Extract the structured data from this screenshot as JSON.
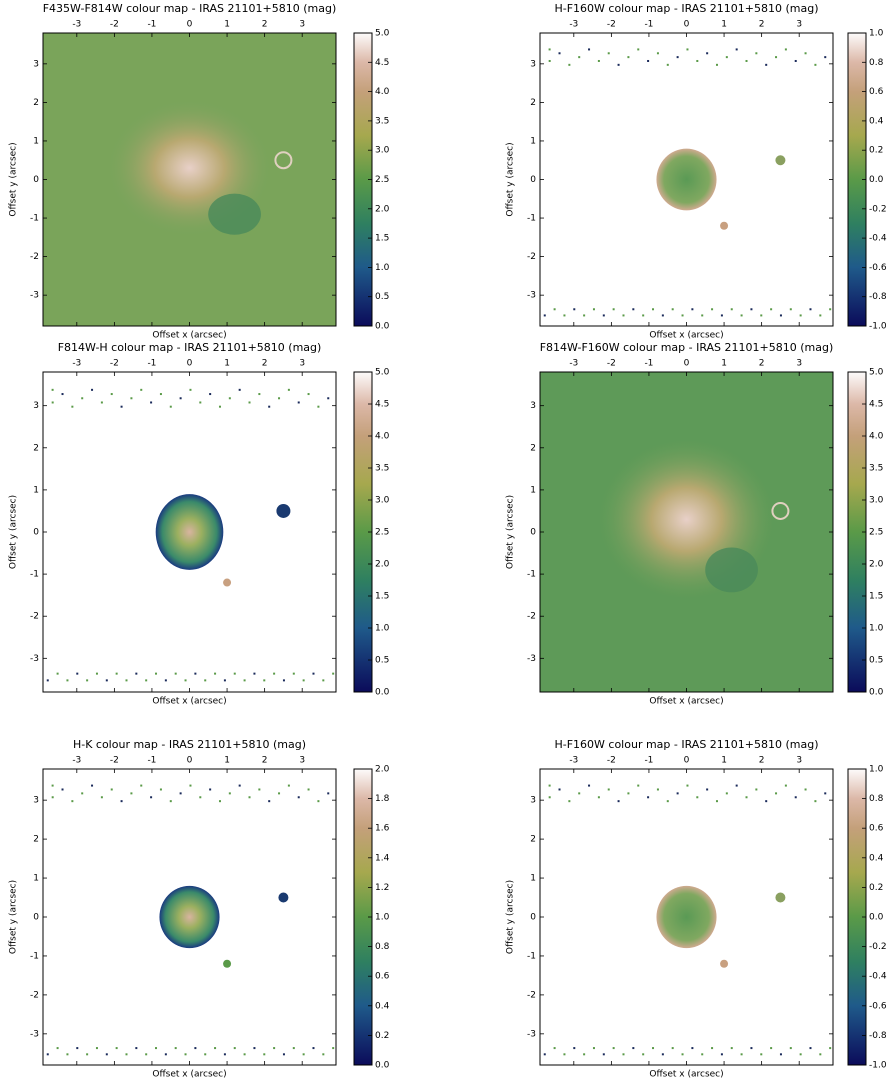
{
  "chart_data": [
    {
      "type": "image",
      "title": "F435W-F814W colour map - IRAS 21101+5810 (mag)",
      "xlabel": "Offset x (arcsec)",
      "ylabel": "Offset y (arcsec)",
      "xlim": [
        -3.9,
        3.9
      ],
      "ylim": [
        -3.8,
        3.8
      ],
      "xticks": [
        -3,
        -2,
        -1,
        0,
        1,
        2,
        3
      ],
      "yticks": [
        -3,
        -2,
        -1,
        0,
        1,
        2,
        3
      ],
      "clim": [
        0,
        5
      ],
      "cticks": [
        {
          "value": 0,
          "label": "0.0"
        },
        {
          "value": 0.5,
          "label": "0.5"
        },
        {
          "value": 1,
          "label": "1.0"
        },
        {
          "value": 1.5,
          "label": "1.5"
        },
        {
          "value": 2,
          "label": "2.0"
        },
        {
          "value": 2.5,
          "label": "2.5"
        },
        {
          "value": 3,
          "label": "3.0"
        },
        {
          "value": 3.5,
          "label": "3.5"
        },
        {
          "value": 4,
          "label": "4.0"
        },
        {
          "value": 4.5,
          "label": "4.5"
        },
        {
          "value": 5,
          "label": "5.0"
        }
      ]
    },
    {
      "type": "image",
      "title": "H-F160W colour map - IRAS 21101+5810 (mag)",
      "xlabel": "Offset x (arcsec)",
      "ylabel": "Offset y (arcsec)",
      "xlim": [
        -3.9,
        3.9
      ],
      "ylim": [
        -3.8,
        3.8
      ],
      "xticks": [
        -3,
        -2,
        -1,
        0,
        1,
        2,
        3
      ],
      "yticks": [
        -3,
        -2,
        -1,
        0,
        1,
        2,
        3
      ],
      "clim": [
        -1,
        1
      ],
      "cticks": [
        {
          "value": -1,
          "label": "-1.0"
        },
        {
          "value": -0.8,
          "label": "-0.8"
        },
        {
          "value": -0.6,
          "label": "-0.6"
        },
        {
          "value": -0.4,
          "label": "-0.4"
        },
        {
          "value": -0.2,
          "label": "-0.2"
        },
        {
          "value": 0,
          "label": "0.0"
        },
        {
          "value": 0.2,
          "label": "0.2"
        },
        {
          "value": 0.4,
          "label": "0.4"
        },
        {
          "value": 0.6,
          "label": "0.6"
        },
        {
          "value": 0.8,
          "label": "0.8"
        },
        {
          "value": 1,
          "label": "1.0"
        }
      ]
    },
    {
      "type": "image",
      "title": "F814W-H colour map - IRAS 21101+5810 (mag)",
      "xlabel": "Offset x (arcsec)",
      "ylabel": "Offset y (arcsec)",
      "xlim": [
        -3.9,
        3.9
      ],
      "ylim": [
        -3.8,
        3.8
      ],
      "xticks": [
        -3,
        -2,
        -1,
        0,
        1,
        2,
        3
      ],
      "yticks": [
        -3,
        -2,
        -1,
        0,
        1,
        2,
        3
      ],
      "clim": [
        0,
        5
      ],
      "cticks": [
        {
          "value": 0,
          "label": "0.0"
        },
        {
          "value": 0.5,
          "label": "0.5"
        },
        {
          "value": 1,
          "label": "1.0"
        },
        {
          "value": 1.5,
          "label": "1.5"
        },
        {
          "value": 2,
          "label": "2.0"
        },
        {
          "value": 2.5,
          "label": "2.5"
        },
        {
          "value": 3,
          "label": "3.0"
        },
        {
          "value": 3.5,
          "label": "3.5"
        },
        {
          "value": 4,
          "label": "4.0"
        },
        {
          "value": 4.5,
          "label": "4.5"
        },
        {
          "value": 5,
          "label": "5.0"
        }
      ]
    },
    {
      "type": "image",
      "title": "F814W-F160W colour map - IRAS 21101+5810 (mag)",
      "xlabel": "Offset x (arcsec)",
      "ylabel": "Offset y (arcsec)",
      "xlim": [
        -3.9,
        3.9
      ],
      "ylim": [
        -3.8,
        3.8
      ],
      "xticks": [
        -3,
        -2,
        -1,
        0,
        1,
        2,
        3
      ],
      "yticks": [
        -3,
        -2,
        -1,
        0,
        1,
        2,
        3
      ],
      "clim": [
        0,
        5
      ],
      "cticks": [
        {
          "value": 0,
          "label": "0.0"
        },
        {
          "value": 0.5,
          "label": "0.5"
        },
        {
          "value": 1,
          "label": "1.0"
        },
        {
          "value": 1.5,
          "label": "1.5"
        },
        {
          "value": 2,
          "label": "2.0"
        },
        {
          "value": 2.5,
          "label": "2.5"
        },
        {
          "value": 3,
          "label": "3.0"
        },
        {
          "value": 3.5,
          "label": "3.5"
        },
        {
          "value": 4,
          "label": "4.0"
        },
        {
          "value": 4.5,
          "label": "4.5"
        },
        {
          "value": 5,
          "label": "5.0"
        }
      ]
    },
    {
      "type": "image",
      "title": "H-K colour map - IRAS 21101+5810 (mag)",
      "xlabel": "Offset x (arcsec)",
      "ylabel": "Offset y (arcsec)",
      "xlim": [
        -3.9,
        3.9
      ],
      "ylim": [
        -3.8,
        3.8
      ],
      "xticks": [
        -3,
        -2,
        -1,
        0,
        1,
        2,
        3
      ],
      "yticks": [
        -3,
        -2,
        -1,
        0,
        1,
        2,
        3
      ],
      "clim": [
        0,
        2
      ],
      "cticks": [
        {
          "value": 0,
          "label": "0.0"
        },
        {
          "value": 0.2,
          "label": "0.2"
        },
        {
          "value": 0.4,
          "label": "0.4"
        },
        {
          "value": 0.6,
          "label": "0.6"
        },
        {
          "value": 0.8,
          "label": "0.8"
        },
        {
          "value": 1,
          "label": "1.0"
        },
        {
          "value": 1.2,
          "label": "1.2"
        },
        {
          "value": 1.4,
          "label": "1.4"
        },
        {
          "value": 1.6,
          "label": "1.6"
        },
        {
          "value": 1.8,
          "label": "1.8"
        },
        {
          "value": 2,
          "label": "2.0"
        }
      ]
    },
    {
      "type": "image",
      "title": "H-F160W colour map - IRAS 21101+5810 (mag)",
      "xlabel": "Offset x (arcsec)",
      "ylabel": "Offset y (arcsec)",
      "xlim": [
        -3.9,
        3.9
      ],
      "ylim": [
        -3.8,
        3.8
      ],
      "xticks": [
        -3,
        -2,
        -1,
        0,
        1,
        2,
        3
      ],
      "yticks": [
        -3,
        -2,
        -1,
        0,
        1,
        2,
        3
      ],
      "clim": [
        -1,
        1
      ],
      "cticks": [
        {
          "value": -1,
          "label": "-1.0"
        },
        {
          "value": -0.8,
          "label": "-0.8"
        },
        {
          "value": -0.6,
          "label": "-0.6"
        },
        {
          "value": -0.4,
          "label": "-0.4"
        },
        {
          "value": -0.2,
          "label": "-0.2"
        },
        {
          "value": 0,
          "label": "0.0"
        },
        {
          "value": 0.2,
          "label": "0.2"
        },
        {
          "value": 0.4,
          "label": "0.4"
        },
        {
          "value": 0.6,
          "label": "0.6"
        },
        {
          "value": 0.8,
          "label": "0.8"
        },
        {
          "value": 1,
          "label": "1.0"
        }
      ]
    }
  ]
}
